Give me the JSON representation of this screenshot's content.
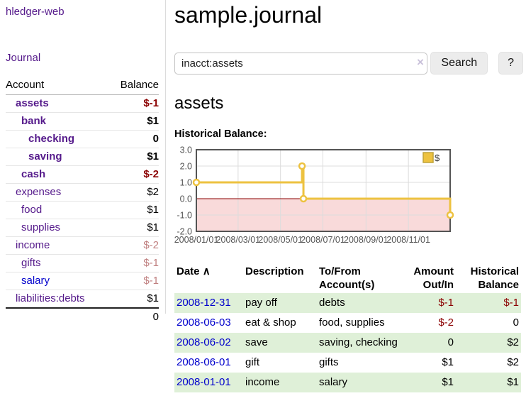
{
  "colors": {
    "purple": "#551a8b",
    "blue": "#0000cc",
    "neg": "#8b0000",
    "neg_muted": "#c08080",
    "row_highlight": "#dff0d8",
    "button_bg": "#ececec",
    "chart_gold": "#edc240"
  },
  "app": {
    "title": "hledger-web"
  },
  "sidebar": {
    "journal_link": "Journal",
    "accounts_table": {
      "headers": {
        "account": "Account",
        "balance": "Balance"
      },
      "rows": [
        {
          "name": "assets",
          "indent": 1,
          "bold": true,
          "balance": "$-1",
          "balance_style": "neg",
          "link_style": "purple"
        },
        {
          "name": "bank",
          "indent": 2,
          "bold": true,
          "balance": "$1",
          "balance_style": "pos",
          "link_style": "purple"
        },
        {
          "name": "checking",
          "indent": 3,
          "bold": true,
          "balance": "0",
          "balance_style": "pos",
          "link_style": "purple"
        },
        {
          "name": "saving",
          "indent": 3,
          "bold": true,
          "balance": "$1",
          "balance_style": "pos",
          "link_style": "purple"
        },
        {
          "name": "cash",
          "indent": 2,
          "bold": true,
          "balance": "$-2",
          "balance_style": "neg",
          "link_style": "purple"
        },
        {
          "name": "expenses",
          "indent": 1,
          "bold": false,
          "balance": "$2",
          "balance_style": "pos",
          "link_style": "purple"
        },
        {
          "name": "food",
          "indent": 2,
          "bold": false,
          "balance": "$1",
          "balance_style": "pos",
          "link_style": "purple"
        },
        {
          "name": "supplies",
          "indent": 2,
          "bold": false,
          "balance": "$1",
          "balance_style": "pos",
          "link_style": "purple"
        },
        {
          "name": "income",
          "indent": 1,
          "bold": false,
          "balance": "$-2",
          "balance_style": "neg-muted",
          "link_style": "purple"
        },
        {
          "name": "gifts",
          "indent": 2,
          "bold": false,
          "balance": "$-1",
          "balance_style": "neg-muted",
          "link_style": "purple"
        },
        {
          "name": "salary",
          "indent": 2,
          "bold": false,
          "balance": "$-1",
          "balance_style": "neg-muted",
          "link_style": "blue"
        },
        {
          "name": "liabilities:debts",
          "indent": 1,
          "bold": false,
          "balance": "$1",
          "balance_style": "pos",
          "link_style": "purple"
        }
      ],
      "total": "0"
    }
  },
  "header": {
    "title": "sample.journal"
  },
  "search": {
    "value": "inacct:assets",
    "clear_icon": "×",
    "button_label": "Search",
    "help_label": "?"
  },
  "account_page": {
    "title": "assets",
    "chart_label": "Historical Balance:"
  },
  "chart_data": {
    "type": "line",
    "step": true,
    "title": "Historical Balance",
    "x_range": [
      "2008-01-01",
      "2008-12-31"
    ],
    "ylim": [
      -2,
      3
    ],
    "y_ticks": [
      "3.0",
      "2.0",
      "1.0",
      "0.0",
      "-1.0",
      "-2.0"
    ],
    "x_ticks": [
      {
        "date": "2008-01-01",
        "label": "2008/01/01"
      },
      {
        "date": "2008-03-01",
        "label": "2008/03/01"
      },
      {
        "date": "2008-05-01",
        "label": "2008/05/01"
      },
      {
        "date": "2008-07-01",
        "label": "2008/07/01"
      },
      {
        "date": "2008-09-01",
        "label": "2008/09/01"
      },
      {
        "date": "2008-11-01",
        "label": "2008/11/01"
      }
    ],
    "series": [
      {
        "name": "$",
        "color": "#edc240",
        "points": [
          {
            "date": "2008-01-01",
            "value": 1
          },
          {
            "date": "2008-06-01",
            "value": 2
          },
          {
            "date": "2008-06-03",
            "value": 0
          },
          {
            "date": "2008-12-31",
            "value": -1
          }
        ]
      }
    ],
    "grid": true,
    "legend": {
      "position": "top-right",
      "label": "$",
      "swatch_color": "#edc240"
    },
    "negative_region_color": "#f9dada",
    "zero_line_color": "#8b0000"
  },
  "register": {
    "sort_icon": "∧",
    "columns": [
      "Date",
      "Description",
      "To/From Account(s)",
      "Amount Out/In",
      "Historical Balance"
    ],
    "rows": [
      {
        "date": "2008-12-31",
        "description": "pay off",
        "accounts": "debts",
        "amount": "$-1",
        "balance": "$-1",
        "highlight": true
      },
      {
        "date": "2008-06-03",
        "description": "eat & shop",
        "accounts": "food, supplies",
        "amount": "$-2",
        "balance": "0",
        "highlight": false
      },
      {
        "date": "2008-06-02",
        "description": "save",
        "accounts": "saving, checking",
        "amount": "0",
        "balance": "$2",
        "highlight": true
      },
      {
        "date": "2008-06-01",
        "description": "gift",
        "accounts": "gifts",
        "amount": "$1",
        "balance": "$2",
        "highlight": false
      },
      {
        "date": "2008-01-01",
        "description": "income",
        "accounts": "salary",
        "amount": "$1",
        "balance": "$1",
        "highlight": true
      }
    ]
  }
}
